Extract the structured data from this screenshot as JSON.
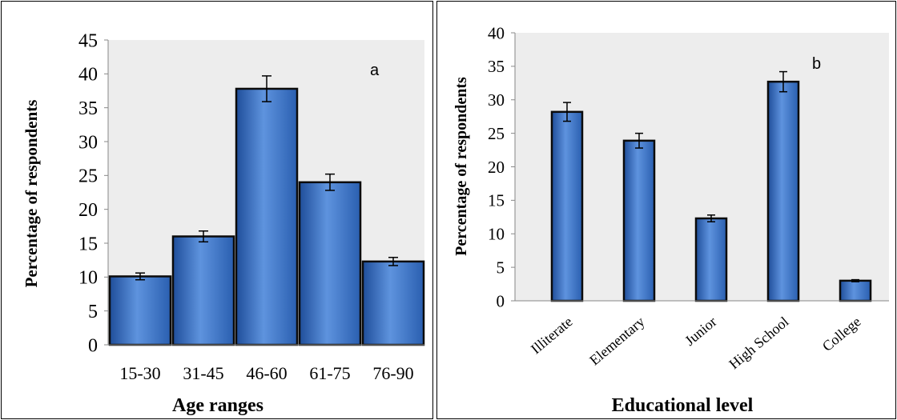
{
  "chart_data": [
    {
      "type": "bar",
      "panel_label": "a",
      "categories": [
        "15-30",
        "31-45",
        "46-60",
        "61-75",
        "76-90"
      ],
      "series": [
        {
          "values": [
            10.1,
            16.0,
            37.8,
            24.0,
            12.3
          ],
          "errors": [
            0.5,
            0.8,
            1.9,
            1.2,
            0.6
          ]
        }
      ],
      "xlabel": "Age ranges",
      "ylabel": "Percentage  of respondents",
      "ylim": [
        0,
        45
      ],
      "yticks": [
        "0",
        "5",
        "10",
        "15",
        "20",
        "25",
        "30",
        "35",
        "40",
        "45"
      ],
      "grid": false,
      "bar_color": "#3A72C8"
    },
    {
      "type": "bar",
      "panel_label": "b",
      "categories": [
        "Illiterate",
        "Elementary",
        "Junior",
        "High School",
        "College"
      ],
      "series": [
        {
          "values": [
            28.2,
            23.9,
            12.3,
            32.7,
            3.0
          ],
          "errors": [
            1.4,
            1.1,
            0.5,
            1.5,
            0.15
          ]
        }
      ],
      "xlabel": "Educational level",
      "ylabel": "Percentage  of respondents",
      "ylim": [
        0,
        40
      ],
      "yticks": [
        "0",
        "5",
        "10",
        "15",
        "20",
        "25",
        "30",
        "35",
        "40"
      ],
      "grid": false,
      "bar_color": "#3A72C8"
    }
  ]
}
